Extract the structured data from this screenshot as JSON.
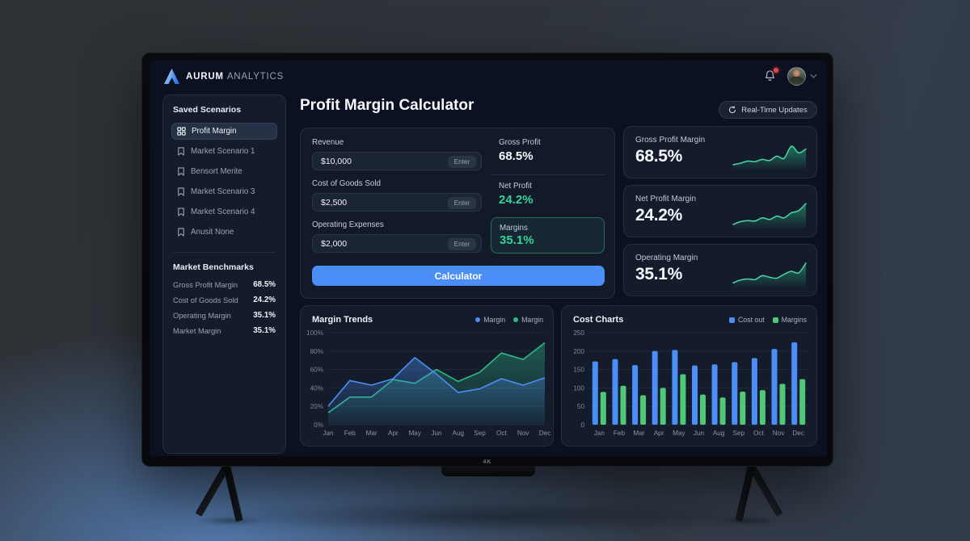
{
  "monitor": {
    "screen_badge": "4K"
  },
  "header": {
    "brand_primary": "AURUM",
    "brand_secondary": "ANALYTICS",
    "icons": {
      "bell": "notification-bell",
      "avatar": "user-avatar",
      "chevron": "chevron-down"
    }
  },
  "sidebar": {
    "scenarios_title": "Saved Scenarios",
    "items": [
      {
        "label": "Profit Margin",
        "icon": "grid-icon",
        "active": true
      },
      {
        "label": "Market Scenario 1",
        "icon": "bookmark-icon",
        "active": false
      },
      {
        "label": "Bensort Merite",
        "icon": "bookmark-icon",
        "active": false
      },
      {
        "label": "Market Scenario 3",
        "icon": "bookmark-icon",
        "active": false
      },
      {
        "label": "Market Scenario 4",
        "icon": "bookmark-icon",
        "active": false
      },
      {
        "label": "Anusit None",
        "icon": "bookmark-icon",
        "active": false
      }
    ],
    "benchmarks_title": "Market Benchmarks",
    "benchmarks": [
      {
        "label": "Gross Profit Margin",
        "value": "68.5%"
      },
      {
        "label": "Cost of Goods Sold",
        "value": "24.2%"
      },
      {
        "label": "Operating Margin",
        "value": "35.1%"
      },
      {
        "label": "Market Margin",
        "value": "35.1%"
      }
    ]
  },
  "main": {
    "page_title": "Profit Margin Calculator",
    "realtime_button_label": "Real-Time Updates",
    "calculator": {
      "fields": [
        {
          "label": "Revenue",
          "value": "$10,000",
          "key_hint": "Enter"
        },
        {
          "label": "Cost of Goods Sold",
          "value": "$2,500",
          "key_hint": "Enter"
        },
        {
          "label": "Operating Expenses",
          "value": "$2,000",
          "key_hint": "Enter"
        }
      ],
      "results": [
        {
          "label": "Gross Profit",
          "value": "68.5%",
          "emphasis": "white"
        },
        {
          "label": "Net Profit",
          "value": "24.2%",
          "emphasis": "green"
        }
      ],
      "margins_box": {
        "label": "Margins",
        "value": "35.1%"
      },
      "submit_label": "Calculator"
    },
    "stat_cards": [
      {
        "label": "Gross Profit Margin",
        "value": "68.5%",
        "sparkline": [
          15,
          20,
          28,
          26,
          34,
          30,
          46,
          38,
          82,
          58,
          72
        ]
      },
      {
        "label": "Net Profit Margin",
        "value": "24.2%",
        "sparkline": [
          12,
          22,
          26,
          24,
          36,
          30,
          42,
          36,
          54,
          62,
          88
        ]
      },
      {
        "label": "Operating Margin",
        "value": "35.1%",
        "sparkline": [
          14,
          24,
          28,
          26,
          40,
          34,
          31,
          45,
          56,
          50,
          86
        ]
      }
    ]
  },
  "chart_data": [
    {
      "type": "area",
      "title": "Margin Trends",
      "categories": [
        "Jan",
        "Feb",
        "Mar",
        "Apr",
        "May",
        "Jun",
        "Aug",
        "Sep",
        "Oct",
        "Nov",
        "Dec"
      ],
      "series": [
        {
          "name": "Margin",
          "color": "#2eb886",
          "values": [
            13,
            30,
            30,
            49,
            45,
            60,
            47,
            57,
            78,
            71,
            89
          ]
        },
        {
          "name": "Margin",
          "color": "#4b8ef7",
          "values": [
            20,
            48,
            43,
            50,
            73,
            55,
            35,
            39,
            50,
            43,
            51
          ]
        }
      ],
      "legend_order": [
        "#4b8ef7",
        "#2eb886"
      ],
      "ylim": [
        0,
        100
      ],
      "yticks": [
        "0%",
        "20%",
        "40%",
        "60%",
        "80%",
        "100%"
      ],
      "xlabel": "",
      "ylabel": "",
      "grid": true,
      "legend_position": "top-right",
      "legend_marker": "dot"
    },
    {
      "type": "bar",
      "title": "Cost Charts",
      "categories": [
        "Jan",
        "Feb",
        "Mar",
        "Apr",
        "May",
        "Jun",
        "Aug",
        "Sep",
        "Oct",
        "Nov",
        "Dec"
      ],
      "series": [
        {
          "name": "Cost out",
          "color": "#4b8ef7",
          "values": [
            172,
            178,
            162,
            200,
            203,
            161,
            164,
            170,
            181,
            206,
            224
          ]
        },
        {
          "name": "Margins",
          "color": "#4fc878",
          "values": [
            89,
            106,
            80,
            100,
            137,
            82,
            74,
            90,
            94,
            111,
            124
          ]
        }
      ],
      "ylim": [
        0,
        250
      ],
      "yticks": [
        "0",
        "50",
        "100",
        "150",
        "200",
        "250"
      ],
      "xlabel": "",
      "ylabel": "",
      "grid": true,
      "legend_position": "top-right",
      "legend_marker": "square"
    }
  ],
  "colors": {
    "accent_blue": "#4b8ef7",
    "accent_green": "#34d399",
    "chart_green": "#2eb886",
    "bar_green": "#4fc878",
    "alert_red": "#ef4444",
    "screen_bg": "#0b1120",
    "panel_bg": "#141c2b"
  }
}
